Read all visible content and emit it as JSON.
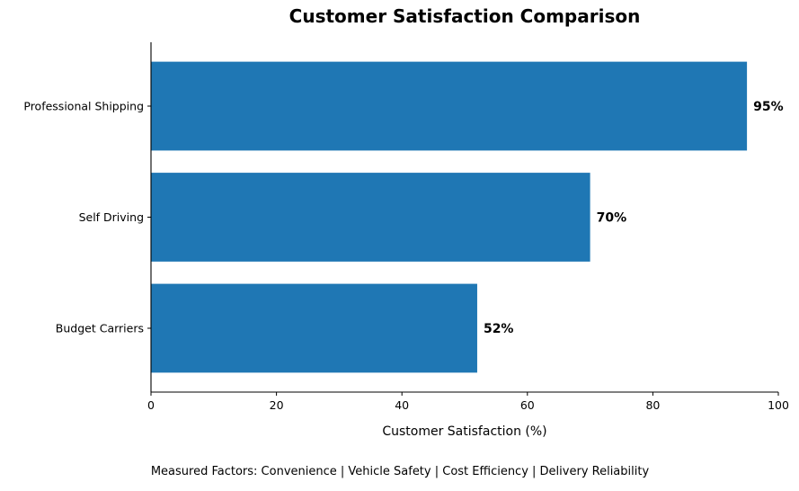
{
  "chart_data": {
    "type": "bar",
    "orientation": "horizontal",
    "title": "Customer Satisfaction Comparison",
    "xlabel": "Customer Satisfaction (%)",
    "ylabel": "",
    "xlim": [
      0,
      100
    ],
    "xticks": [
      0,
      20,
      40,
      60,
      80,
      100
    ],
    "categories": [
      "Professional Shipping",
      "Self Driving",
      "Budget Carriers"
    ],
    "values": [
      95,
      70,
      52
    ],
    "data_labels": [
      "95%",
      "70%",
      "52%"
    ],
    "bar_color": "#1f77b4",
    "grid": false,
    "legend": "none",
    "footnote": "Measured Factors: Convenience | Vehicle Safety | Cost Efficiency | Delivery Reliability"
  }
}
